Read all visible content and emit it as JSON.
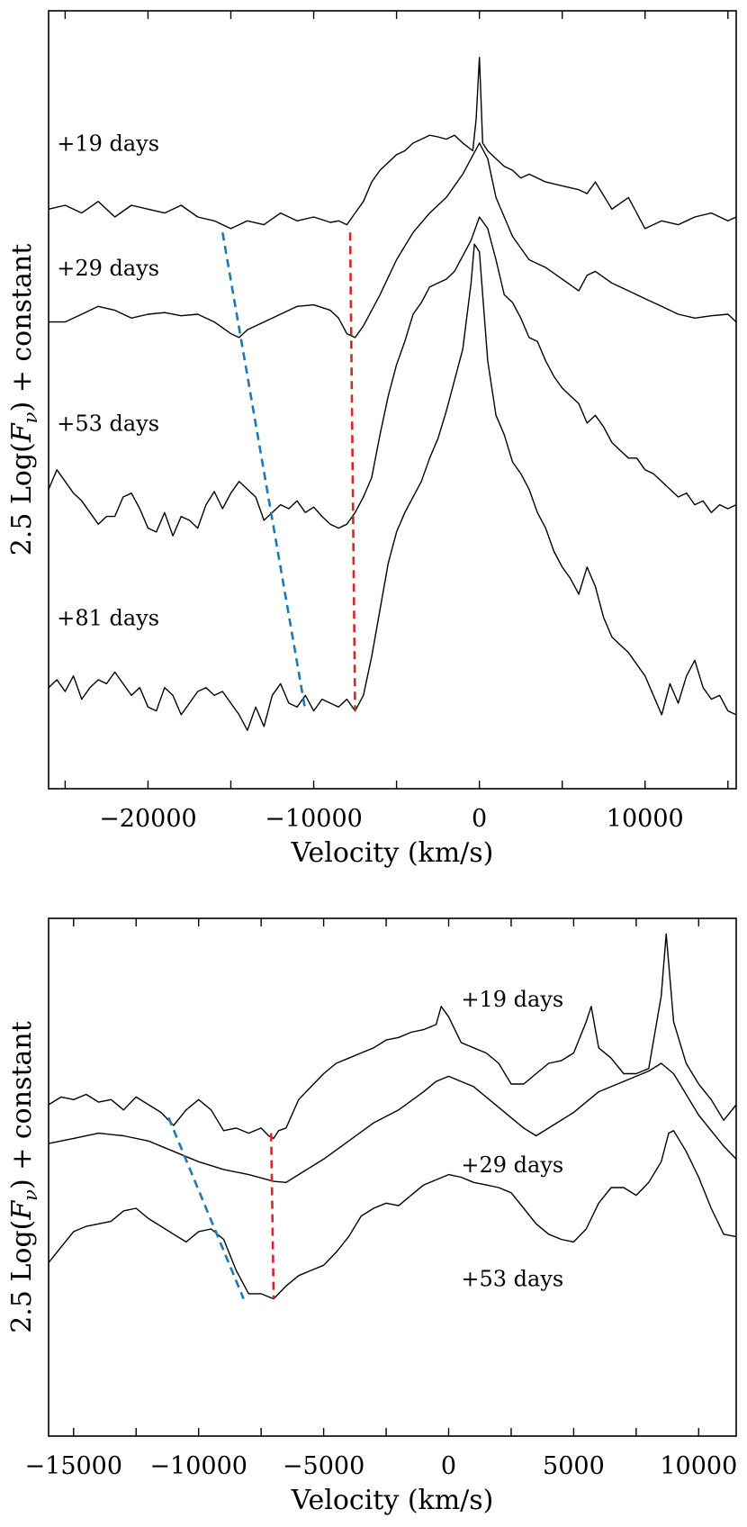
{
  "chart_data": [
    {
      "type": "line",
      "panel": "top",
      "xlabel": "Velocity (km/s)",
      "ylabel": "2.5 Log(F_ν) + constant",
      "ylabel_parts": {
        "pre": "2.5 Log(",
        "symbol": "F",
        "subscript": "ν",
        "post": ") + constant"
      },
      "xlim": [
        -26000,
        15500
      ],
      "ylim": [
        0,
        10
      ],
      "xticks": [
        -25000,
        -20000,
        -15000,
        -10000,
        -5000,
        0,
        5000,
        10000,
        15000
      ],
      "xtick_labels": [
        {
          "value": -20000,
          "label": "−20000"
        },
        {
          "value": -10000,
          "label": "−10000"
        },
        {
          "value": 0,
          "label": "0"
        },
        {
          "value": 10000,
          "label": "10000"
        }
      ],
      "series": [
        {
          "name": "+19 days",
          "label_x": -25500,
          "label_y": 8.2,
          "x": [
            -26000,
            -25000,
            -24000,
            -23000,
            -22000,
            -21000,
            -20000,
            -19000,
            -18000,
            -17000,
            -16000,
            -15500,
            -15000,
            -14000,
            -13000,
            -12000,
            -11000,
            -10000,
            -9000,
            -8500,
            -8000,
            -7500,
            -7000,
            -6500,
            -6000,
            -5500,
            -5000,
            -4500,
            -4000,
            -3500,
            -3000,
            -2500,
            -2000,
            -1500,
            -1000,
            -700,
            -400,
            -200,
            0,
            200,
            500,
            1000,
            1500,
            2000,
            2500,
            3000,
            4000,
            5000,
            6000,
            6500,
            7000,
            8000,
            9000,
            10000,
            11000,
            12000,
            13000,
            14000,
            15000,
            15500
          ],
          "y": [
            7.45,
            7.5,
            7.4,
            7.55,
            7.35,
            7.5,
            7.45,
            7.4,
            7.5,
            7.35,
            7.3,
            7.25,
            7.2,
            7.3,
            7.25,
            7.4,
            7.3,
            7.35,
            7.28,
            7.3,
            7.25,
            7.4,
            7.55,
            7.8,
            7.95,
            8.05,
            8.15,
            8.2,
            8.3,
            8.35,
            8.4,
            8.38,
            8.35,
            8.4,
            8.3,
            8.25,
            8.2,
            8.6,
            9.4,
            8.3,
            8.2,
            8.1,
            8.0,
            7.95,
            7.85,
            7.9,
            7.8,
            7.75,
            7.7,
            7.65,
            7.8,
            7.45,
            7.6,
            7.2,
            7.3,
            7.25,
            7.35,
            7.4,
            7.3,
            7.35
          ]
        },
        {
          "name": "+29 days",
          "label_x": -25500,
          "label_y": 6.6,
          "x": [
            -26000,
            -25000,
            -24000,
            -23000,
            -22000,
            -21000,
            -20000,
            -19000,
            -18000,
            -17000,
            -16000,
            -15000,
            -14500,
            -14000,
            -13000,
            -12000,
            -11000,
            -10000,
            -9000,
            -8500,
            -8000,
            -7500,
            -7000,
            -6000,
            -5000,
            -4000,
            -3000,
            -2000,
            -1000,
            -500,
            0,
            500,
            1000,
            2000,
            3000,
            4000,
            5000,
            6000,
            6500,
            7000,
            8000,
            9000,
            10000,
            11000,
            12000,
            13000,
            14000,
            15000,
            15500
          ],
          "y": [
            6.0,
            6.0,
            6.1,
            6.2,
            6.15,
            6.05,
            6.1,
            6.12,
            6.08,
            6.1,
            6.0,
            5.85,
            5.8,
            5.9,
            6.0,
            6.1,
            6.2,
            6.22,
            6.15,
            6.05,
            5.85,
            5.8,
            5.95,
            6.35,
            6.8,
            7.15,
            7.4,
            7.6,
            7.9,
            8.1,
            8.3,
            8.1,
            7.6,
            7.1,
            6.8,
            6.7,
            6.55,
            6.4,
            6.6,
            6.65,
            6.5,
            6.4,
            6.3,
            6.2,
            6.1,
            6.05,
            6.08,
            6.1,
            6.0
          ]
        },
        {
          "name": "+53 days",
          "label_x": -25500,
          "label_y": 4.6,
          "x": [
            -26000,
            -25500,
            -25000,
            -24500,
            -24000,
            -23500,
            -23000,
            -22500,
            -22000,
            -21500,
            -21000,
            -20500,
            -20000,
            -19500,
            -19000,
            -18500,
            -18000,
            -17500,
            -17000,
            -16500,
            -16000,
            -15500,
            -15000,
            -14500,
            -14000,
            -13500,
            -13000,
            -12500,
            -12000,
            -11500,
            -11000,
            -10500,
            -10000,
            -9500,
            -9000,
            -8500,
            -8000,
            -7500,
            -7000,
            -6500,
            -6000,
            -5500,
            -5000,
            -4500,
            -4000,
            -3500,
            -3000,
            -2500,
            -2000,
            -1500,
            -1000,
            -500,
            0,
            500,
            1000,
            1500,
            2000,
            2500,
            3000,
            3500,
            4000,
            4500,
            5000,
            5500,
            6000,
            6500,
            7000,
            7500,
            8000,
            8500,
            9000,
            9500,
            10000,
            10500,
            11000,
            11500,
            12000,
            12500,
            13000,
            13500,
            14000,
            14500,
            15000,
            15500
          ],
          "y": [
            3.85,
            4.1,
            3.95,
            3.8,
            3.7,
            3.55,
            3.4,
            3.5,
            3.5,
            3.75,
            3.8,
            3.6,
            3.35,
            3.3,
            3.55,
            3.25,
            3.5,
            3.45,
            3.35,
            3.65,
            3.82,
            3.6,
            3.8,
            3.95,
            3.85,
            3.75,
            3.45,
            3.55,
            3.65,
            3.6,
            3.7,
            3.55,
            3.62,
            3.5,
            3.4,
            3.35,
            3.4,
            3.55,
            3.75,
            4.0,
            4.55,
            5.05,
            5.45,
            5.75,
            6.1,
            6.25,
            6.45,
            6.5,
            6.55,
            6.65,
            6.85,
            7.05,
            7.35,
            7.2,
            6.8,
            6.35,
            6.25,
            6.05,
            5.8,
            5.75,
            5.5,
            5.3,
            5.15,
            5.05,
            4.95,
            4.7,
            4.8,
            4.65,
            4.45,
            4.35,
            4.25,
            4.25,
            4.1,
            4.05,
            3.95,
            3.85,
            3.75,
            3.8,
            3.65,
            3.7,
            3.55,
            3.65,
            3.6,
            3.65
          ]
        },
        {
          "name": "+81 days",
          "label_x": -25500,
          "label_y": 2.1,
          "x": [
            -26000,
            -25500,
            -25000,
            -24500,
            -24000,
            -23500,
            -23000,
            -22500,
            -22000,
            -21500,
            -21000,
            -20500,
            -20000,
            -19500,
            -19000,
            -18500,
            -18000,
            -17500,
            -17000,
            -16500,
            -16000,
            -15500,
            -15000,
            -14500,
            -14000,
            -13500,
            -13000,
            -12500,
            -12000,
            -11500,
            -11000,
            -10500,
            -10000,
            -9500,
            -9000,
            -8500,
            -8000,
            -7500,
            -7000,
            -6500,
            -6000,
            -5500,
            -5000,
            -4500,
            -4000,
            -3500,
            -3000,
            -2500,
            -2000,
            -1500,
            -1000,
            -500,
            -300,
            0,
            500,
            1000,
            1500,
            2000,
            2500,
            3000,
            3500,
            4000,
            4500,
            5000,
            5500,
            6000,
            6500,
            7000,
            7500,
            8000,
            8500,
            9000,
            9500,
            10000,
            10500,
            11000,
            11500,
            12000,
            12500,
            13000,
            13500,
            14000,
            14500,
            15000,
            15500
          ],
          "y": [
            1.3,
            1.4,
            1.25,
            1.45,
            1.15,
            1.3,
            1.4,
            1.35,
            1.5,
            1.35,
            1.2,
            1.3,
            1.05,
            1.0,
            1.3,
            1.2,
            0.95,
            1.1,
            1.25,
            1.3,
            1.2,
            1.25,
            1.1,
            0.95,
            0.75,
            1.05,
            0.8,
            1.2,
            1.35,
            1.1,
            1.05,
            1.2,
            1.0,
            1.15,
            1.1,
            1.05,
            1.15,
            1.0,
            1.2,
            1.7,
            2.3,
            2.9,
            3.3,
            3.55,
            3.75,
            3.95,
            4.25,
            4.5,
            4.85,
            5.25,
            5.65,
            6.5,
            7.0,
            6.9,
            5.5,
            4.8,
            4.55,
            4.2,
            4.05,
            3.85,
            3.55,
            3.35,
            3.05,
            2.85,
            2.7,
            2.5,
            2.85,
            2.6,
            2.2,
            1.95,
            1.85,
            1.75,
            1.6,
            1.45,
            1.2,
            0.95,
            1.35,
            1.1,
            1.45,
            1.65,
            1.3,
            1.15,
            1.2,
            1.0,
            0.95
          ]
        }
      ],
      "markers": [
        {
          "name": "blue-marker",
          "color": "#1f77b4",
          "x1": -15500,
          "y1": 7.15,
          "x2": -10500,
          "y2": 1.0
        },
        {
          "name": "red-marker",
          "color": "#d62728",
          "x1": -7800,
          "y1": 7.15,
          "x2": -7500,
          "y2": 1.0
        }
      ]
    },
    {
      "type": "line",
      "panel": "bottom",
      "xlabel": "Velocity (km/s)",
      "ylabel": "2.5 Log(F_ν) + constant",
      "ylabel_parts": {
        "pre": "2.5 Log(",
        "symbol": "F",
        "subscript": "ν",
        "post": ") + constant"
      },
      "xlim": [
        -16000,
        11500
      ],
      "ylim": [
        0,
        10
      ],
      "xticks": [
        -15000,
        -12500,
        -10000,
        -7500,
        -5000,
        -2500,
        0,
        2500,
        5000,
        7500,
        10000
      ],
      "xtick_labels": [
        {
          "value": -15000,
          "label": "−15000"
        },
        {
          "value": -10000,
          "label": "−10000"
        },
        {
          "value": -5000,
          "label": "−5000"
        },
        {
          "value": 0,
          "label": "0"
        },
        {
          "value": 5000,
          "label": "5000"
        },
        {
          "value": 10000,
          "label": "10000"
        }
      ],
      "series": [
        {
          "name": "+19 days",
          "label_x": 500,
          "label_y": 8.3,
          "x": [
            -16000,
            -15500,
            -15000,
            -14500,
            -14000,
            -13500,
            -13000,
            -12500,
            -12000,
            -11500,
            -11000,
            -10500,
            -10000,
            -9500,
            -9000,
            -8500,
            -8000,
            -7500,
            -7200,
            -7000,
            -6800,
            -6500,
            -6000,
            -5500,
            -5000,
            -4500,
            -4000,
            -3500,
            -3000,
            -2500,
            -2000,
            -1500,
            -1000,
            -500,
            -300,
            0,
            500,
            1000,
            1500,
            2000,
            2500,
            3000,
            3500,
            4000,
            4500,
            5000,
            5500,
            5700,
            6000,
            6500,
            7000,
            7500,
            8000,
            8500,
            8700,
            9000,
            9500,
            10000,
            10500,
            11000,
            11500
          ],
          "y": [
            6.4,
            6.55,
            6.5,
            6.6,
            6.45,
            6.5,
            6.3,
            6.55,
            6.4,
            6.25,
            6.0,
            6.3,
            6.5,
            6.3,
            5.9,
            5.95,
            5.85,
            5.95,
            5.8,
            5.75,
            5.9,
            5.95,
            6.5,
            6.75,
            7.0,
            7.2,
            7.3,
            7.4,
            7.5,
            7.65,
            7.7,
            7.8,
            7.85,
            7.95,
            8.3,
            8.1,
            7.6,
            7.5,
            7.4,
            7.2,
            6.8,
            6.8,
            7.0,
            7.2,
            7.25,
            7.4,
            8.0,
            8.3,
            7.5,
            7.3,
            7.0,
            7.0,
            7.1,
            8.5,
            9.7,
            8.0,
            7.2,
            6.8,
            6.5,
            6.1,
            6.4
          ]
        },
        {
          "name": "+29 days",
          "label_x": 500,
          "label_y": 5.1,
          "x": [
            -16000,
            -15000,
            -14000,
            -13000,
            -12000,
            -11000,
            -10000,
            -9000,
            -8000,
            -7000,
            -6500,
            -6000,
            -5000,
            -4000,
            -3000,
            -2000,
            -1000,
            -500,
            0,
            1000,
            2000,
            3000,
            3500,
            4000,
            5000,
            6000,
            7000,
            8000,
            8500,
            9000,
            10000,
            11000,
            11500
          ],
          "y": [
            5.65,
            5.75,
            5.85,
            5.8,
            5.7,
            5.5,
            5.3,
            5.15,
            5.05,
            4.92,
            4.9,
            5.05,
            5.35,
            5.7,
            6.05,
            6.3,
            6.65,
            6.85,
            6.95,
            6.75,
            6.35,
            5.95,
            5.8,
            5.95,
            6.25,
            6.65,
            6.85,
            7.05,
            7.2,
            7.0,
            6.2,
            5.6,
            5.35
          ]
        },
        {
          "name": "+53 days",
          "label_x": 500,
          "label_y": 2.9,
          "x": [
            -16000,
            -15500,
            -15000,
            -14500,
            -14000,
            -13500,
            -13000,
            -12500,
            -12000,
            -11500,
            -11000,
            -10500,
            -10000,
            -9500,
            -9000,
            -8500,
            -8000,
            -7500,
            -7000,
            -6500,
            -6000,
            -5500,
            -5000,
            -4500,
            -4000,
            -3500,
            -3000,
            -2500,
            -2000,
            -1500,
            -1000,
            -500,
            0,
            500,
            1000,
            1500,
            2000,
            2500,
            3000,
            3500,
            4000,
            4500,
            5000,
            5500,
            6000,
            6500,
            7000,
            7500,
            8000,
            8500,
            8800,
            9000,
            9500,
            10000,
            10500,
            11000,
            11500
          ],
          "y": [
            3.35,
            3.65,
            3.95,
            4.05,
            4.1,
            4.15,
            4.35,
            4.4,
            4.2,
            4.05,
            3.9,
            3.75,
            3.95,
            4.0,
            3.8,
            3.2,
            2.75,
            2.75,
            2.65,
            2.9,
            3.1,
            3.2,
            3.3,
            3.55,
            3.85,
            4.25,
            4.4,
            4.5,
            4.45,
            4.65,
            4.85,
            4.95,
            5.05,
            5.0,
            4.9,
            4.85,
            4.8,
            4.7,
            4.4,
            4.1,
            3.9,
            3.8,
            3.75,
            4.0,
            4.5,
            4.8,
            4.8,
            4.65,
            4.9,
            5.3,
            5.85,
            5.9,
            5.5,
            5.0,
            4.4,
            3.9,
            3.85
          ]
        }
      ],
      "markers": [
        {
          "name": "blue-marker",
          "color": "#1f77b4",
          "x1": -11200,
          "y1": 6.15,
          "x2": -8200,
          "y2": 2.65
        },
        {
          "name": "red-marker",
          "color": "#d62728",
          "x1": -7100,
          "y1": 5.85,
          "x2": -7000,
          "y2": 2.65
        }
      ]
    }
  ]
}
